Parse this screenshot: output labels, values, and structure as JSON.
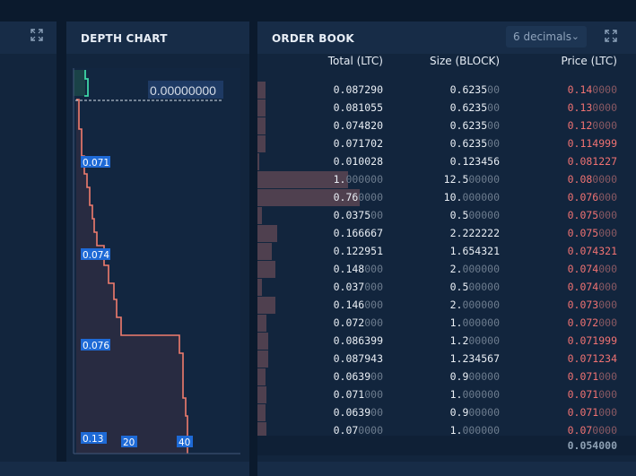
{
  "depth_chart": {
    "title": "DEPTH CHART",
    "price_readout": "0.00000000",
    "price_labels": [
      "0.071",
      "0.074",
      "0.076",
      "0.13"
    ],
    "volume_labels": [
      "20",
      "40"
    ],
    "colors": {
      "ask": "#f07c6e",
      "bid": "#3ed6a5",
      "label_bg": "#1e6ad6"
    }
  },
  "order_book": {
    "title": "ORDER BOOK",
    "decimals_label": "6 decimals",
    "columns": {
      "total": "Total (LTC)",
      "size": "Size (BLOCK)",
      "price": "Price (LTC)"
    },
    "rows": [
      {
        "total": "0.087290",
        "size_main": "0.6235",
        "size_dim": "00",
        "price_main": "0.14",
        "price_dim": "0000",
        "depth": 0.022
      },
      {
        "total": "0.081055",
        "size_main": "0.6235",
        "size_dim": "00",
        "price_main": "0.13",
        "price_dim": "0000",
        "depth": 0.022
      },
      {
        "total": "0.074820",
        "size_main": "0.6235",
        "size_dim": "00",
        "price_main": "0.12",
        "price_dim": "0000",
        "depth": 0.022
      },
      {
        "total": "0.071702",
        "size_main": "0.6235",
        "size_dim": "00",
        "price_main": "0.114999",
        "price_dim": "",
        "depth": 0.022
      },
      {
        "total": "0.010028",
        "size_main": "0.123456",
        "size_dim": "",
        "price_main": "0.081227",
        "price_dim": "",
        "depth": 0.005
      },
      {
        "total_main": "1.",
        "total_dim": "000000",
        "size_main": "12.5",
        "size_dim": "00000",
        "price_main": "0.08",
        "price_dim": "0000",
        "depth": 0.24
      },
      {
        "total_main": "0.76",
        "total_dim": "0000",
        "size_main": "10.",
        "size_dim": "000000",
        "price_main": "0.076",
        "price_dim": "000",
        "depth": 0.27
      },
      {
        "total_main": "0.0375",
        "total_dim": "00",
        "size_main": "0.5",
        "size_dim": "00000",
        "price_main": "0.075",
        "price_dim": "000",
        "depth": 0.012
      },
      {
        "total": "0.166667",
        "size_main": "2.222222",
        "size_dim": "",
        "price_main": "0.075",
        "price_dim": "000",
        "depth": 0.052
      },
      {
        "total": "0.122951",
        "size_main": "1.654321",
        "size_dim": "",
        "price_main": "0.074321",
        "price_dim": "",
        "depth": 0.038
      },
      {
        "total_main": "0.148",
        "total_dim": "000",
        "size_main": "2.",
        "size_dim": "000000",
        "price_main": "0.074",
        "price_dim": "000",
        "depth": 0.047
      },
      {
        "total_main": "0.037",
        "total_dim": "000",
        "size_main": "0.5",
        "size_dim": "00000",
        "price_main": "0.074",
        "price_dim": "000",
        "depth": 0.012
      },
      {
        "total_main": "0.146",
        "total_dim": "000",
        "size_main": "2.",
        "size_dim": "000000",
        "price_main": "0.073",
        "price_dim": "000",
        "depth": 0.047
      },
      {
        "total_main": "0.072",
        "total_dim": "000",
        "size_main": "1.",
        "size_dim": "000000",
        "price_main": "0.072",
        "price_dim": "000",
        "depth": 0.024
      },
      {
        "total": "0.086399",
        "size_main": "1.2",
        "size_dim": "00000",
        "price_main": "0.071999",
        "price_dim": "",
        "depth": 0.028
      },
      {
        "total": "0.087943",
        "size_main": "1.234567",
        "size_dim": "",
        "price_main": "0.071234",
        "price_dim": "",
        "depth": 0.028
      },
      {
        "total_main": "0.0639",
        "total_dim": "00",
        "size_main": "0.9",
        "size_dim": "00000",
        "price_main": "0.071",
        "price_dim": "000",
        "depth": 0.022
      },
      {
        "total_main": "0.071",
        "total_dim": "000",
        "size_main": "1.",
        "size_dim": "000000",
        "price_main": "0.071",
        "price_dim": "000",
        "depth": 0.024
      },
      {
        "total_main": "0.0639",
        "total_dim": "00",
        "size_main": "0.9",
        "size_dim": "00000",
        "price_main": "0.071",
        "price_dim": "000",
        "depth": 0.022
      },
      {
        "total_main": "0.07",
        "total_dim": "0000",
        "size_main": "1.",
        "size_dim": "000000",
        "price_main": "0.07",
        "price_dim": "0000",
        "depth": 0.024
      }
    ],
    "last_price": "0.054000"
  }
}
